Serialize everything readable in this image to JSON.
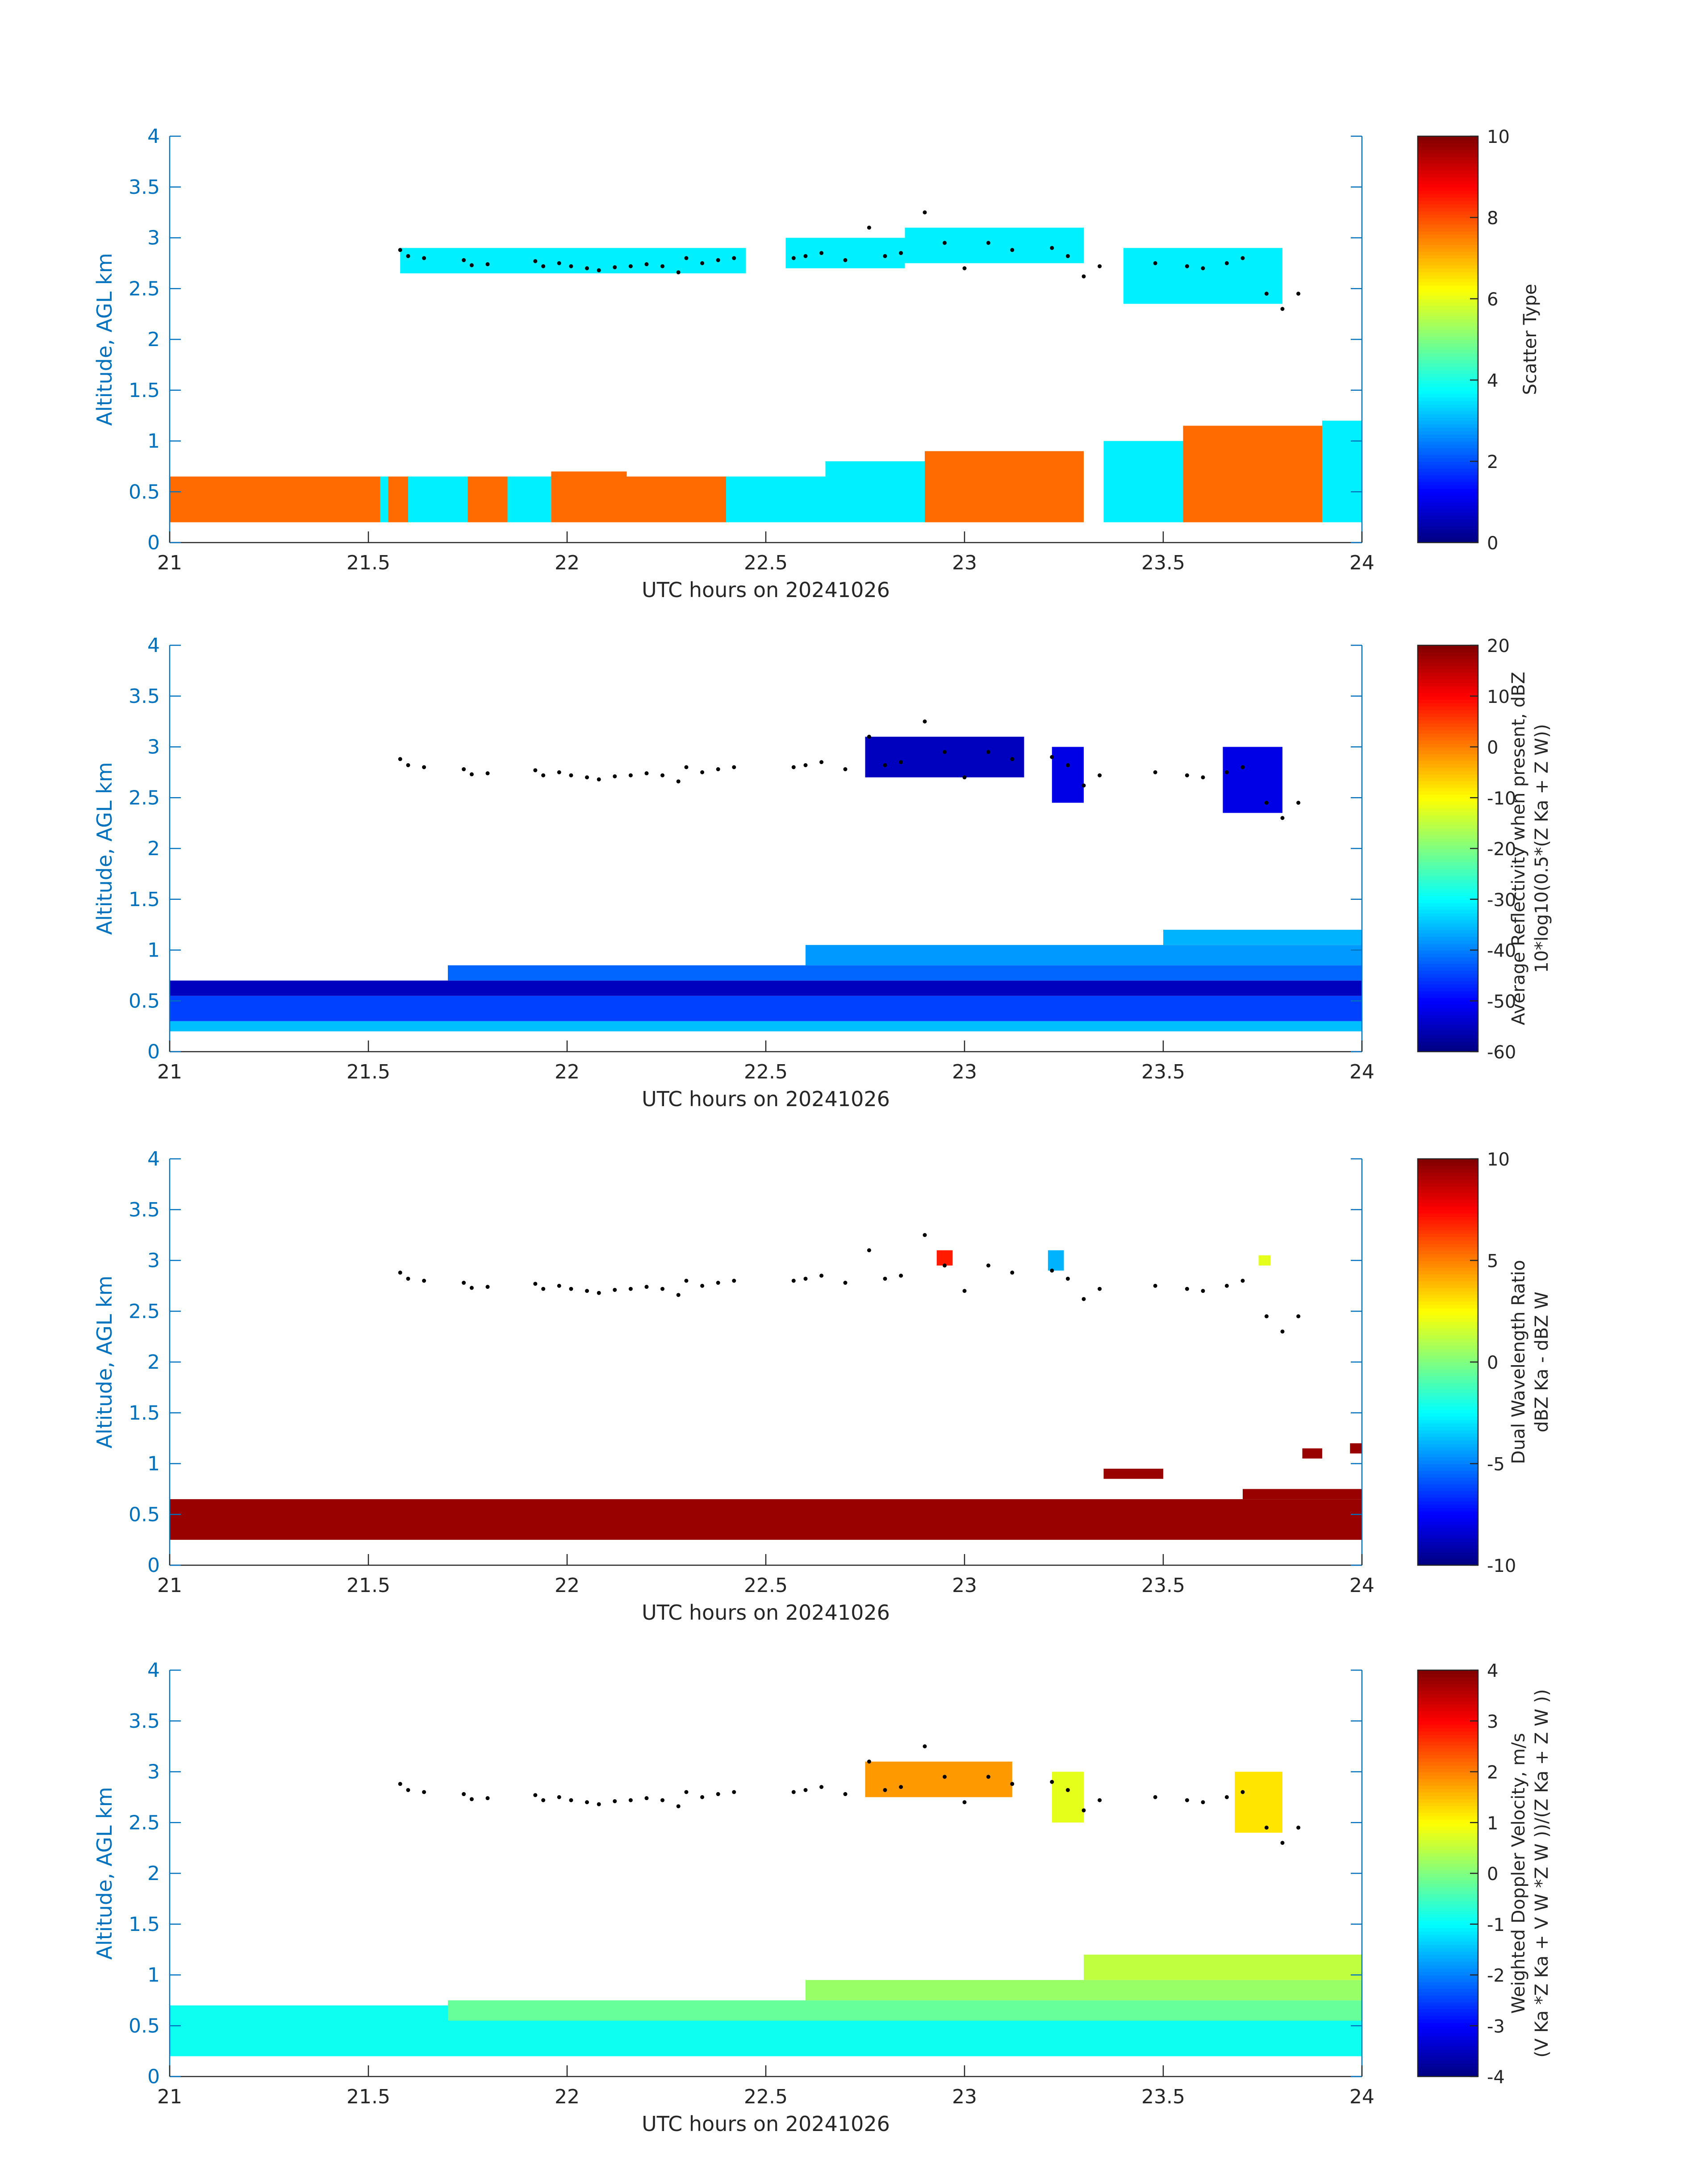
{
  "figure": {
    "x_tick_labels": [
      "21",
      "21.5",
      "22",
      "22.5",
      "23",
      "23.5",
      "24"
    ],
    "y_tick_labels": [
      "0",
      "0.5",
      "1",
      "1.5",
      "2",
      "2.5",
      "3",
      "3.5",
      "4"
    ],
    "colors": {
      "axis_blue": "#0072bd",
      "text": "#262626",
      "points": "#000000"
    }
  },
  "chart_data": [
    {
      "type": "heatmap",
      "id": "scatter-type",
      "xlabel": "UTC hours on 20241026",
      "ylabel": "Altitude, AGL km",
      "xlim": [
        21,
        24
      ],
      "ylim": [
        0,
        4
      ],
      "colorbar": {
        "label_lines": [
          "Scatter Type"
        ],
        "range": [
          0,
          10
        ],
        "tick_labels": [
          "0",
          "2",
          "4",
          "6",
          "8",
          "10"
        ]
      },
      "layers": [
        {
          "x": [
            21.0,
            21.53
          ],
          "y": [
            0.2,
            0.65
          ],
          "value": 7.7
        },
        {
          "x": [
            21.53,
            21.55
          ],
          "y": [
            0.2,
            0.65
          ],
          "value": 3.6
        },
        {
          "x": [
            21.55,
            21.6
          ],
          "y": [
            0.2,
            0.65
          ],
          "value": 7.7
        },
        {
          "x": [
            21.6,
            21.75
          ],
          "y": [
            0.2,
            0.65
          ],
          "value": 3.6
        },
        {
          "x": [
            21.75,
            21.85
          ],
          "y": [
            0.2,
            0.65
          ],
          "value": 7.7
        },
        {
          "x": [
            21.85,
            21.96
          ],
          "y": [
            0.2,
            0.65
          ],
          "value": 3.6
        },
        {
          "x": [
            21.96,
            22.15
          ],
          "y": [
            0.2,
            0.7
          ],
          "value": 7.7
        },
        {
          "x": [
            22.15,
            22.4
          ],
          "y": [
            0.2,
            0.65
          ],
          "value": 7.7
        },
        {
          "x": [
            22.4,
            22.65
          ],
          "y": [
            0.2,
            0.65
          ],
          "value": 3.6
        },
        {
          "x": [
            22.65,
            22.9
          ],
          "y": [
            0.2,
            0.8
          ],
          "value": 3.6
        },
        {
          "x": [
            22.9,
            23.3
          ],
          "y": [
            0.2,
            0.9
          ],
          "value": 7.7
        },
        {
          "x": [
            23.35,
            23.55
          ],
          "y": [
            0.2,
            1.0
          ],
          "value": 3.6
        },
        {
          "x": [
            23.55,
            23.9
          ],
          "y": [
            0.2,
            1.15
          ],
          "value": 7.7
        },
        {
          "x": [
            23.9,
            24.0
          ],
          "y": [
            0.2,
            1.2
          ],
          "value": 3.6
        },
        {
          "x": [
            21.58,
            22.45
          ],
          "y": [
            2.65,
            2.9
          ],
          "value": 3.6
        },
        {
          "x": [
            22.55,
            22.85
          ],
          "y": [
            2.7,
            3.0
          ],
          "value": 3.6
        },
        {
          "x": [
            22.85,
            23.3
          ],
          "y": [
            2.75,
            3.1
          ],
          "value": 3.6
        },
        {
          "x": [
            23.4,
            23.8
          ],
          "y": [
            2.35,
            2.9
          ],
          "value": 3.6
        }
      ],
      "cloud_base_points": {
        "x": [
          21.58,
          21.6,
          21.64,
          21.74,
          21.76,
          21.8,
          21.92,
          21.94,
          21.98,
          22.01,
          22.05,
          22.08,
          22.12,
          22.16,
          22.2,
          22.24,
          22.28,
          22.3,
          22.34,
          22.38,
          22.42,
          22.57,
          22.6,
          22.64,
          22.7,
          22.76,
          22.8,
          22.84,
          22.9,
          22.95,
          23.0,
          23.06,
          23.12,
          23.22,
          23.26,
          23.3,
          23.34,
          23.48,
          23.56,
          23.6,
          23.66,
          23.7,
          23.76,
          23.8,
          23.84
        ],
        "y": [
          2.88,
          2.82,
          2.8,
          2.78,
          2.73,
          2.74,
          2.77,
          2.72,
          2.75,
          2.72,
          2.7,
          2.68,
          2.71,
          2.72,
          2.74,
          2.72,
          2.66,
          2.8,
          2.75,
          2.78,
          2.8,
          2.8,
          2.82,
          2.85,
          2.78,
          3.1,
          2.82,
          2.85,
          3.25,
          2.95,
          2.7,
          2.95,
          2.88,
          2.9,
          2.82,
          2.62,
          2.72,
          2.75,
          2.72,
          2.7,
          2.75,
          2.8,
          2.45,
          2.3,
          2.45
        ]
      }
    },
    {
      "type": "heatmap",
      "id": "reflectivity",
      "xlabel": "UTC hours on 20241026",
      "ylabel": "Altitude, AGL km",
      "xlim": [
        21,
        24
      ],
      "ylim": [
        0,
        4
      ],
      "colorbar": {
        "label_lines": [
          "Average Reflectivity when present, dBZ",
          "10*log10(0.5*(Z Ka + Z W))"
        ],
        "range": [
          -60,
          20
        ],
        "tick_labels": [
          "-60",
          "-50",
          "-40",
          "-30",
          "-20",
          "-10",
          "0",
          "10",
          "20"
        ]
      },
      "layers": [
        {
          "x": [
            21.0,
            24.0
          ],
          "y": [
            0.2,
            0.3
          ],
          "value": -35
        },
        {
          "x": [
            21.0,
            24.0
          ],
          "y": [
            0.3,
            0.55
          ],
          "value": -45
        },
        {
          "x": [
            21.0,
            24.0
          ],
          "y": [
            0.55,
            0.7
          ],
          "value": -55
        },
        {
          "x": [
            21.7,
            24.0
          ],
          "y": [
            0.7,
            0.85
          ],
          "value": -42
        },
        {
          "x": [
            22.6,
            24.0
          ],
          "y": [
            0.85,
            1.05
          ],
          "value": -38
        },
        {
          "x": [
            23.5,
            24.0
          ],
          "y": [
            1.05,
            1.2
          ],
          "value": -36
        },
        {
          "x": [
            22.75,
            23.15
          ],
          "y": [
            2.7,
            3.1
          ],
          "value": -55
        },
        {
          "x": [
            23.22,
            23.3
          ],
          "y": [
            2.45,
            3.0
          ],
          "value": -52
        },
        {
          "x": [
            23.65,
            23.8
          ],
          "y": [
            2.35,
            3.0
          ],
          "value": -52
        }
      ],
      "cloud_base_points": {
        "x": [
          21.58,
          21.6,
          21.64,
          21.74,
          21.76,
          21.8,
          21.92,
          21.94,
          21.98,
          22.01,
          22.05,
          22.08,
          22.12,
          22.16,
          22.2,
          22.24,
          22.28,
          22.3,
          22.34,
          22.38,
          22.42,
          22.57,
          22.6,
          22.64,
          22.7,
          22.76,
          22.8,
          22.84,
          22.9,
          22.95,
          23.0,
          23.06,
          23.12,
          23.22,
          23.26,
          23.3,
          23.34,
          23.48,
          23.56,
          23.6,
          23.66,
          23.7,
          23.76,
          23.8,
          23.84
        ],
        "y": [
          2.88,
          2.82,
          2.8,
          2.78,
          2.73,
          2.74,
          2.77,
          2.72,
          2.75,
          2.72,
          2.7,
          2.68,
          2.71,
          2.72,
          2.74,
          2.72,
          2.66,
          2.8,
          2.75,
          2.78,
          2.8,
          2.8,
          2.82,
          2.85,
          2.78,
          3.1,
          2.82,
          2.85,
          3.25,
          2.95,
          2.7,
          2.95,
          2.88,
          2.9,
          2.82,
          2.62,
          2.72,
          2.75,
          2.72,
          2.7,
          2.75,
          2.8,
          2.45,
          2.3,
          2.45
        ]
      }
    },
    {
      "type": "heatmap",
      "id": "dual-wavelength-ratio",
      "xlabel": "UTC hours on 20241026",
      "ylabel": "Altitude, AGL km",
      "xlim": [
        21,
        24
      ],
      "ylim": [
        0,
        4
      ],
      "colorbar": {
        "label_lines": [
          "Dual Wavelength Ratio",
          "dBZ Ka - dBZ W"
        ],
        "range": [
          -10,
          10
        ],
        "tick_labels": [
          "-10",
          "-5",
          "0",
          "5",
          "10"
        ]
      },
      "layers": [
        {
          "x": [
            21.0,
            24.0
          ],
          "y": [
            0.25,
            0.6
          ],
          "value": 9.5
        },
        {
          "x": [
            21.0,
            24.0
          ],
          "y": [
            0.6,
            0.65
          ],
          "value": 9.5
        },
        {
          "x": [
            23.7,
            24.0
          ],
          "y": [
            0.65,
            0.75
          ],
          "value": 9.5
        },
        {
          "x": [
            23.35,
            23.5
          ],
          "y": [
            0.85,
            0.95
          ],
          "value": 9.5
        },
        {
          "x": [
            23.85,
            23.9
          ],
          "y": [
            1.05,
            1.15
          ],
          "value": 9.5
        },
        {
          "x": [
            23.97,
            24.0
          ],
          "y": [
            1.1,
            1.2
          ],
          "value": 9.5
        },
        {
          "x": [
            22.93,
            22.97
          ],
          "y": [
            2.95,
            3.1
          ],
          "value": 7
        },
        {
          "x": [
            23.21,
            23.25
          ],
          "y": [
            2.9,
            3.1
          ],
          "value": -4
        },
        {
          "x": [
            23.74,
            23.77
          ],
          "y": [
            2.95,
            3.05
          ],
          "value": 2
        }
      ],
      "cloud_base_points": {
        "x": [
          21.58,
          21.6,
          21.64,
          21.74,
          21.76,
          21.8,
          21.92,
          21.94,
          21.98,
          22.01,
          22.05,
          22.08,
          22.12,
          22.16,
          22.2,
          22.24,
          22.28,
          22.3,
          22.34,
          22.38,
          22.42,
          22.57,
          22.6,
          22.64,
          22.7,
          22.76,
          22.8,
          22.84,
          22.9,
          22.95,
          23.0,
          23.06,
          23.12,
          23.22,
          23.26,
          23.3,
          23.34,
          23.48,
          23.56,
          23.6,
          23.66,
          23.7,
          23.76,
          23.8,
          23.84
        ],
        "y": [
          2.88,
          2.82,
          2.8,
          2.78,
          2.73,
          2.74,
          2.77,
          2.72,
          2.75,
          2.72,
          2.7,
          2.68,
          2.71,
          2.72,
          2.74,
          2.72,
          2.66,
          2.8,
          2.75,
          2.78,
          2.8,
          2.8,
          2.82,
          2.85,
          2.78,
          3.1,
          2.82,
          2.85,
          3.25,
          2.95,
          2.7,
          2.95,
          2.88,
          2.9,
          2.82,
          2.62,
          2.72,
          2.75,
          2.72,
          2.7,
          2.75,
          2.8,
          2.45,
          2.3,
          2.45
        ]
      }
    },
    {
      "type": "heatmap",
      "id": "doppler-velocity",
      "xlabel": "UTC hours on 20241026",
      "ylabel": "Altitude, AGL km",
      "xlim": [
        21,
        24
      ],
      "ylim": [
        0,
        4
      ],
      "colorbar": {
        "label_lines": [
          "Weighted Doppler Velocity, m/s",
          "(V Ka *Z Ka + V W *Z W ))/(Z Ka + Z W ))"
        ],
        "range": [
          -4,
          4
        ],
        "tick_labels": [
          "-4",
          "-3",
          "-2",
          "-1",
          "0",
          "1",
          "2",
          "3",
          "4"
        ]
      },
      "layers": [
        {
          "x": [
            21.0,
            24.0
          ],
          "y": [
            0.2,
            0.7
          ],
          "value": -0.9
        },
        {
          "x": [
            21.7,
            24.0
          ],
          "y": [
            0.55,
            0.75
          ],
          "value": -0.2
        },
        {
          "x": [
            22.6,
            24.0
          ],
          "y": [
            0.75,
            0.95
          ],
          "value": 0.2
        },
        {
          "x": [
            23.3,
            24.0
          ],
          "y": [
            0.95,
            1.2
          ],
          "value": 0.5
        },
        {
          "x": [
            22.75,
            23.12
          ],
          "y": [
            2.75,
            3.1
          ],
          "value": 1.8
        },
        {
          "x": [
            23.22,
            23.3
          ],
          "y": [
            2.5,
            3.0
          ],
          "value": 0.8
        },
        {
          "x": [
            23.68,
            23.8
          ],
          "y": [
            2.4,
            3.0
          ],
          "value": 1.2
        }
      ],
      "cloud_base_points": {
        "x": [
          21.58,
          21.6,
          21.64,
          21.74,
          21.76,
          21.8,
          21.92,
          21.94,
          21.98,
          22.01,
          22.05,
          22.08,
          22.12,
          22.16,
          22.2,
          22.24,
          22.28,
          22.3,
          22.34,
          22.38,
          22.42,
          22.57,
          22.6,
          22.64,
          22.7,
          22.76,
          22.8,
          22.84,
          22.9,
          22.95,
          23.0,
          23.06,
          23.12,
          23.22,
          23.26,
          23.3,
          23.34,
          23.48,
          23.56,
          23.6,
          23.66,
          23.7,
          23.76,
          23.8,
          23.84
        ],
        "y": [
          2.88,
          2.82,
          2.8,
          2.78,
          2.73,
          2.74,
          2.77,
          2.72,
          2.75,
          2.72,
          2.7,
          2.68,
          2.71,
          2.72,
          2.74,
          2.72,
          2.66,
          2.8,
          2.75,
          2.78,
          2.8,
          2.8,
          2.82,
          2.85,
          2.78,
          3.1,
          2.82,
          2.85,
          3.25,
          2.95,
          2.7,
          2.95,
          2.88,
          2.9,
          2.82,
          2.62,
          2.72,
          2.75,
          2.72,
          2.7,
          2.75,
          2.8,
          2.45,
          2.3,
          2.45
        ]
      }
    }
  ]
}
